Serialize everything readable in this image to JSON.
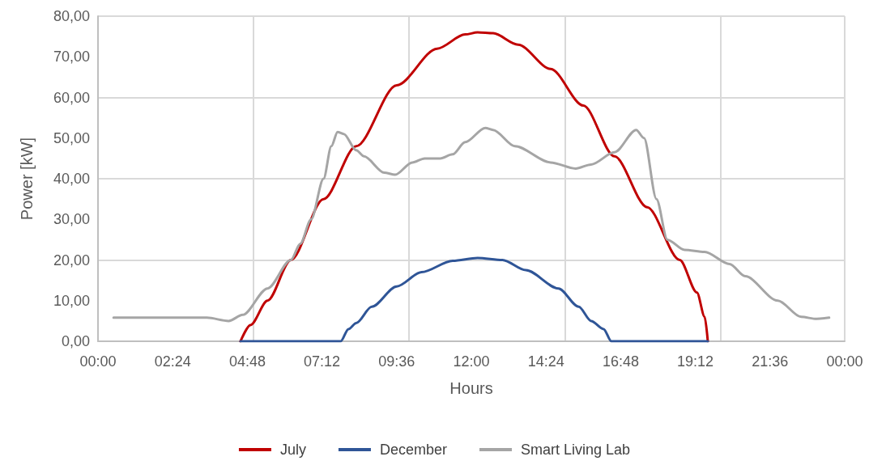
{
  "chart_data": {
    "type": "line",
    "xlabel": "Hours",
    "ylabel": "Power [kW]",
    "xlim": [
      0,
      24
    ],
    "xticks": [
      {
        "value": 0,
        "label": "00:00"
      },
      {
        "value": 2.4,
        "label": "02:24"
      },
      {
        "value": 4.8,
        "label": "04:48"
      },
      {
        "value": 7.2,
        "label": "07:12"
      },
      {
        "value": 9.6,
        "label": "09:36"
      },
      {
        "value": 12,
        "label": "12:00"
      },
      {
        "value": 14.4,
        "label": "14:24"
      },
      {
        "value": 16.8,
        "label": "16:48"
      },
      {
        "value": 19.2,
        "label": "19:12"
      },
      {
        "value": 21.6,
        "label": "21:36"
      },
      {
        "value": 24,
        "label": "00:00"
      }
    ],
    "ylim": [
      0,
      80
    ],
    "yticks": [
      {
        "value": 0,
        "label": "0,00"
      },
      {
        "value": 10,
        "label": "10,00"
      },
      {
        "value": 20,
        "label": "20,00"
      },
      {
        "value": 30,
        "label": "30,00"
      },
      {
        "value": 40,
        "label": "40,00"
      },
      {
        "value": 50,
        "label": "50,00"
      },
      {
        "value": 60,
        "label": "60,00"
      },
      {
        "value": 70,
        "label": "70,00"
      },
      {
        "value": 80,
        "label": "80,00"
      }
    ],
    "grid": true,
    "legend": "bottom",
    "marker": "none",
    "line_style": "solid",
    "series": [
      {
        "name": "July",
        "color": "#c00000",
        "x": [
          4.58,
          4.9,
          5.45,
          6.2,
          7.25,
          8.3,
          9.6,
          10.9,
          11.8,
          12.2,
          12.7,
          13.5,
          14.55,
          15.6,
          16.6,
          17.65,
          18.7,
          19.25,
          19.5,
          19.6
        ],
        "values": [
          0,
          4,
          10,
          20,
          35,
          48,
          63,
          72,
          75.5,
          76,
          75.8,
          73,
          67,
          58,
          45.5,
          33,
          20,
          12,
          6,
          0
        ]
      },
      {
        "name": "December",
        "color": "#2f5597",
        "x": [
          4.58,
          7.8,
          8.05,
          8.3,
          8.8,
          9.6,
          10.4,
          11.4,
          12.2,
          13.0,
          13.75,
          14.8,
          15.45,
          15.85,
          16.25,
          16.5,
          19.6
        ],
        "values": [
          0,
          0,
          3,
          4.5,
          8.5,
          13.5,
          17,
          19.8,
          20.5,
          20,
          17.5,
          13,
          8.5,
          5,
          3,
          0,
          0
        ]
      },
      {
        "name": "Smart Living Lab",
        "color": "#a5a5a5",
        "x": [
          0.5,
          3.5,
          4.2,
          4.65,
          5.45,
          6.2,
          6.5,
          6.85,
          7.25,
          7.5,
          7.7,
          7.9,
          8.3,
          8.55,
          9.2,
          9.55,
          10.1,
          10.5,
          11.0,
          11.4,
          11.8,
          12.45,
          12.7,
          13.4,
          14.55,
          15.35,
          15.85,
          16.6,
          17.3,
          17.55,
          17.95,
          18.3,
          18.85,
          19.5,
          20.3,
          20.8,
          21.85,
          22.6,
          23.1,
          23.5
        ],
        "values": [
          5.8,
          5.8,
          5,
          6.5,
          13,
          20,
          24,
          30,
          40,
          48,
          51.5,
          51,
          47,
          45.5,
          41.5,
          41,
          44,
          45,
          45,
          46,
          49,
          52.5,
          52,
          48,
          44,
          42.5,
          43.5,
          46.5,
          52,
          50,
          35,
          25,
          22.5,
          22,
          19,
          16,
          10,
          6,
          5.5,
          5.8
        ]
      }
    ]
  }
}
